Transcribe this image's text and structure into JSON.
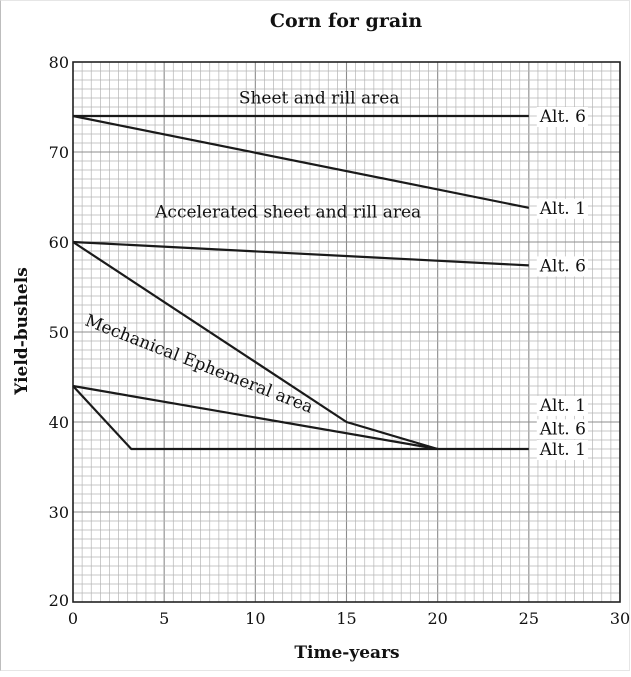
{
  "chart_data": {
    "type": "line",
    "title": "Corn for grain",
    "xlabel": "Time-years",
    "ylabel": "Yield-bushels",
    "xlim": [
      0,
      30
    ],
    "ylim": [
      20,
      80
    ],
    "grid": true,
    "x_ticks": [
      "0",
      "5",
      "10",
      "15",
      "20",
      "25",
      "30"
    ],
    "y_ticks": [
      "20",
      "30",
      "40",
      "50",
      "60",
      "70",
      "80"
    ],
    "series": [
      {
        "x": [
          0,
          25
        ],
        "y": [
          74,
          74
        ]
      },
      {
        "x": [
          0,
          25
        ],
        "y": [
          74,
          63.8
        ]
      },
      {
        "x": [
          0,
          25
        ],
        "y": [
          60,
          57.4
        ]
      },
      {
        "x": [
          0,
          15,
          20
        ],
        "y": [
          60,
          40,
          37
        ]
      },
      {
        "x": [
          0,
          20
        ],
        "y": [
          44,
          37
        ]
      },
      {
        "x": [
          0,
          3.2,
          25
        ],
        "y": [
          44,
          37,
          37
        ]
      }
    ],
    "annotations": [
      {
        "text": "Sheet and rill area",
        "x": 13.5,
        "y": 75.4
      },
      {
        "text": "Accelerated sheet and rill area",
        "x": 11.8,
        "y": 62.7
      },
      {
        "text": "Mechanical Ephemeral area",
        "x": 0.6,
        "y": 50.8
      },
      {
        "text": "Alt. 6",
        "x": 25.6,
        "y": 74
      },
      {
        "text": "Alt. 1",
        "x": 25.6,
        "y": 63.8
      },
      {
        "text": "Alt. 6",
        "x": 25.6,
        "y": 57.4
      },
      {
        "text": "Alt. 1",
        "x": 25.6,
        "y": 41.9
      },
      {
        "text": "Alt. 6",
        "x": 25.6,
        "y": 39.3
      },
      {
        "text": "Alt. 1",
        "x": 25.6,
        "y": 37
      }
    ],
    "colors": {
      "lines": "#1a1a1a",
      "grid": "#b5b5b5",
      "axes": "#222222"
    }
  }
}
